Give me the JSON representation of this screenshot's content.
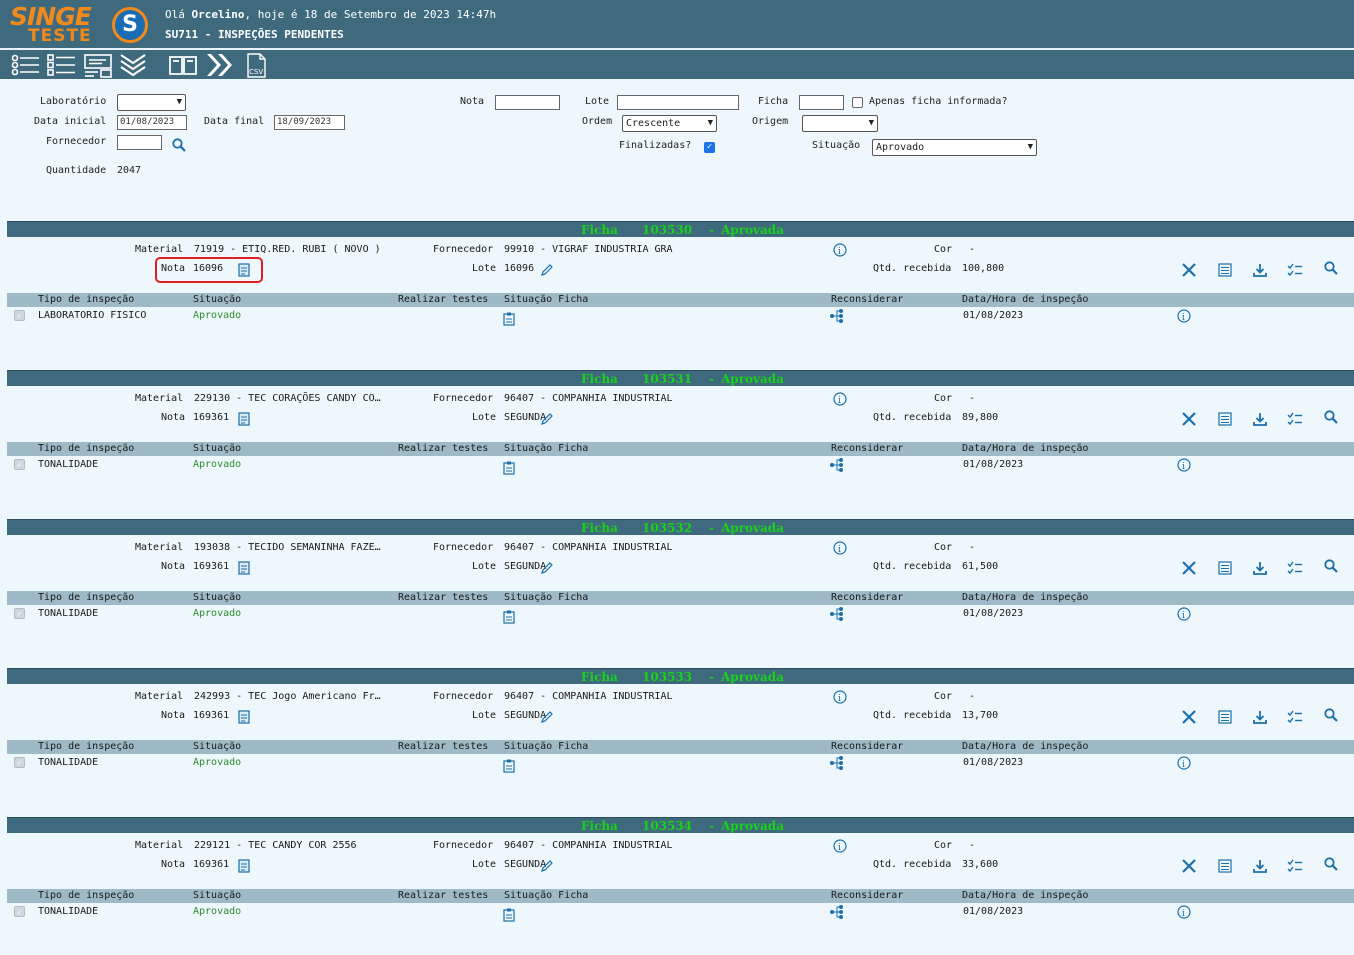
{
  "header": {
    "logo_top": "SINGE",
    "logo_bottom": "TESTE",
    "logo_mark": "S",
    "greeting_prefix": "Olá ",
    "user": "Orcelino",
    "greeting_suffix": ", hoje é 18 de Setembro de 2023 14:47h",
    "page_title": "SU711 - INSPEÇÕES PENDENTES"
  },
  "toolbar": {
    "icons": [
      "list-icon",
      "checklist-icon",
      "form-icon",
      "collapse-all-icon",
      "book-icon",
      "forward-icon",
      "csv-icon"
    ],
    "csv_label": "CSV"
  },
  "filters": {
    "laboratorio_label": "Laboratório",
    "laboratorio_value": "",
    "data_inicial_label": "Data inicial",
    "data_inicial_value": "01/08/2023",
    "data_final_label": "Data final",
    "data_final_value": "18/09/2023",
    "fornecedor_label": "Fornecedor",
    "fornecedor_value": "",
    "quantidade_label": "Quantidade",
    "quantidade_value": "2047",
    "nota_label": "Nota",
    "nota_value": "",
    "lote_label": "Lote",
    "lote_value": "",
    "ficha_label": "Ficha",
    "ficha_value": "",
    "apenas_label": "Apenas ficha informada?",
    "apenas_checked": false,
    "ordem_label": "Ordem",
    "ordem_value": "Crescente",
    "origem_label": "Origem",
    "origem_value": "",
    "finalizadas_label": "Finalizadas?",
    "finalizadas_checked": true,
    "situacao_label": "Situação",
    "situacao_value": "Aprovado"
  },
  "labels": {
    "ficha": "Ficha",
    "material": "Material",
    "fornecedor": "Fornecedor",
    "cor": "Cor",
    "nota": "Nota",
    "lote": "Lote",
    "qtd": "Qtd. recebida",
    "col_tipo": "Tipo de inspeção",
    "col_situacao": "Situação",
    "col_realizar": "Realizar testes",
    "col_sit_ficha": "Situação Ficha",
    "col_reconsiderar": "Reconsiderar",
    "col_data": "Data/Hora de inspeção"
  },
  "fichas": [
    {
      "numero": "103530",
      "status": "Aprovada",
      "material": "71919 - ETIQ.RED. RUBI ( NOVO )",
      "fornecedor": "99910 - VIGRAF INDUSTRIA GRA",
      "cor": "-",
      "nota": "16096",
      "lote": "16096",
      "qtd": "100,800",
      "tipo": "LABORATORIO FISICO",
      "situacao": "Aprovado",
      "data": "01/08/2023"
    },
    {
      "numero": "103531",
      "status": "Aprovada",
      "material": "229130 - TEC CORAÇÕES CANDY CO…",
      "fornecedor": "96407 - COMPANHIA INDUSTRIAL",
      "cor": "-",
      "nota": "169361",
      "lote": "SEGUNDA",
      "qtd": "89,800",
      "tipo": "TONALIDADE",
      "situacao": "Aprovado",
      "data": "01/08/2023"
    },
    {
      "numero": "103532",
      "status": "Aprovada",
      "material": "193038 - TECIDO SEMANINHA FAZE…",
      "fornecedor": "96407 - COMPANHIA INDUSTRIAL",
      "cor": "-",
      "nota": "169361",
      "lote": "SEGUNDA",
      "qtd": "61,500",
      "tipo": "TONALIDADE",
      "situacao": "Aprovado",
      "data": "01/08/2023"
    },
    {
      "numero": "103533",
      "status": "Aprovada",
      "material": "242993 - TEC Jogo Americano Fr…",
      "fornecedor": "96407 - COMPANHIA INDUSTRIAL",
      "cor": "-",
      "nota": "169361",
      "lote": "SEGUNDA",
      "qtd": "13,700",
      "tipo": "TONALIDADE",
      "situacao": "Aprovado",
      "data": "01/08/2023"
    },
    {
      "numero": "103534",
      "status": "Aprovada",
      "material": "229121 - TEC CANDY COR 2556",
      "fornecedor": "96407 - COMPANHIA INDUSTRIAL",
      "cor": "-",
      "nota": "169361",
      "lote": "SEGUNDA",
      "qtd": "33,600",
      "tipo": "TONALIDADE",
      "situacao": "Aprovado",
      "data": "01/08/2023"
    }
  ]
}
